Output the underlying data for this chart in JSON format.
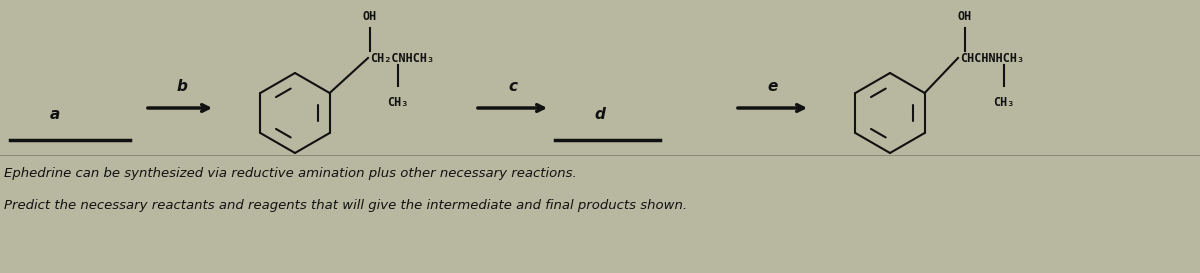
{
  "bg_color": "#b8b8a0",
  "text_color": "#111111",
  "fig_width": 12.0,
  "fig_height": 2.73,
  "dpi": 100,
  "line1": "Ephedrine can be synthesized via reductive amination plus other necessary reactions.",
  "line2": "Predict the necessary reactants and reagents that will give the intermediate and final products shown.",
  "label_a": "a",
  "label_b": "b",
  "label_c": "c",
  "label_d": "d",
  "label_e": "e",
  "font_size_labels": 11,
  "font_size_chem": 8.5,
  "font_size_text": 9.5
}
